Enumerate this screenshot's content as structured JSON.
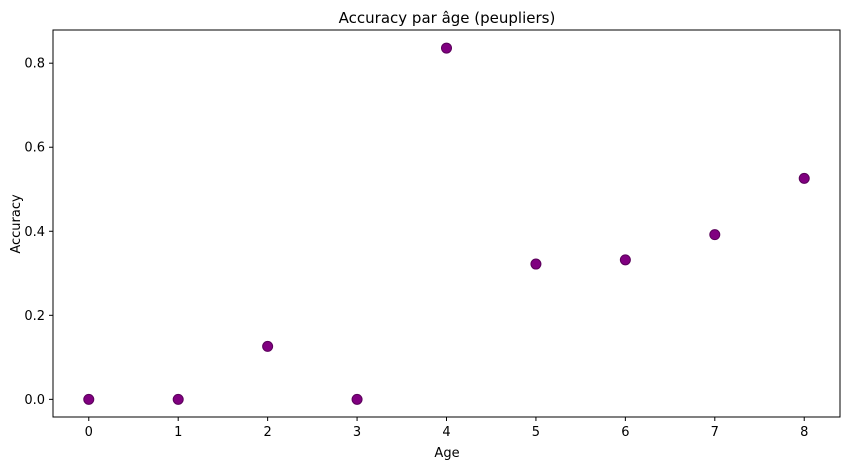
{
  "chart_data": {
    "type": "scatter",
    "title": "Accuracy par âge (peupliers)",
    "xlabel": "Age",
    "ylabel": "Accuracy",
    "x": [
      0,
      1,
      2,
      3,
      4,
      5,
      6,
      7,
      8
    ],
    "y": [
      0.0,
      0.0,
      0.126,
      0.0,
      0.836,
      0.322,
      0.332,
      0.392,
      0.526
    ],
    "xlim": [
      -0.4,
      8.4
    ],
    "ylim": [
      -0.042,
      0.879
    ],
    "xticks": [
      0,
      1,
      2,
      3,
      4,
      5,
      6,
      7,
      8
    ],
    "yticks": [
      0.0,
      0.2,
      0.4,
      0.6,
      0.8
    ],
    "xtick_labels": [
      "0",
      "1",
      "2",
      "3",
      "4",
      "5",
      "6",
      "7",
      "8"
    ],
    "ytick_labels": [
      "0.0",
      "0.2",
      "0.4",
      "0.6",
      "0.8"
    ],
    "grid": false,
    "marker_color": "#800080",
    "marker_edge_color": "#5a005a"
  }
}
